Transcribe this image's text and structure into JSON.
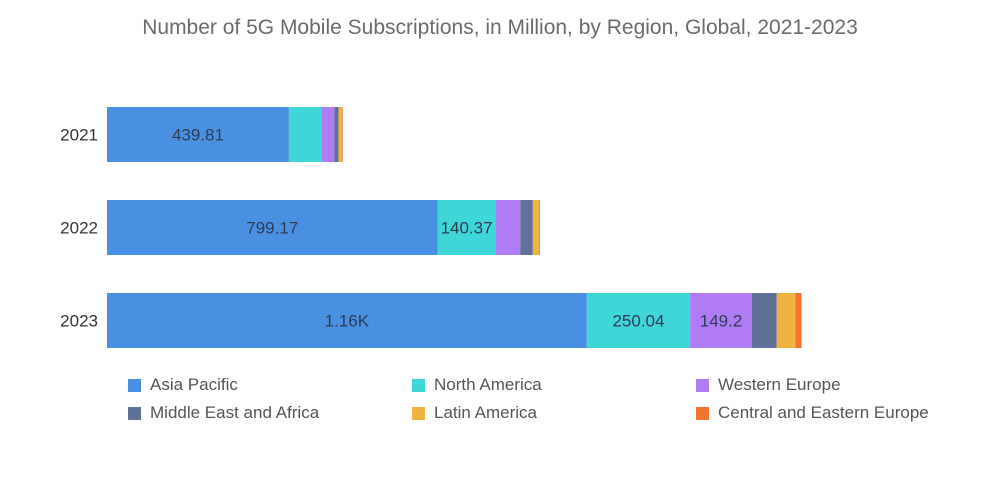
{
  "chart_data": {
    "type": "bar",
    "orientation": "horizontal",
    "stacked": true,
    "title": "Number of 5G Mobile Subscriptions, in Million, by Region, Global, 2021-2023",
    "xlabel": "",
    "ylabel": "",
    "xlim": [
      0,
      1800
    ],
    "grid": false,
    "legend_position": "bottom",
    "categories": [
      "2021",
      "2022",
      "2023"
    ],
    "series": [
      {
        "name": "Asia Pacific",
        "color": "#4a90e2",
        "values": [
          439.81,
          799.17,
          1160
        ],
        "labels": [
          "439.81",
          "799.17",
          "1.16K"
        ]
      },
      {
        "name": "North America",
        "color": "#3ed6d6",
        "values": [
          80,
          140.37,
          250.04
        ],
        "labels": [
          "",
          "140.37",
          "250.04"
        ]
      },
      {
        "name": "Western Europe",
        "color": "#b07cf5",
        "values": [
          30,
          60,
          149.2
        ],
        "labels": [
          "",
          "",
          "149.2"
        ]
      },
      {
        "name": "Middle East and Africa",
        "color": "#5e7397",
        "values": [
          10,
          30,
          60
        ],
        "labels": [
          "",
          "",
          ""
        ]
      },
      {
        "name": "Latin America",
        "color": "#f0b443",
        "values": [
          8,
          15,
          45
        ],
        "labels": [
          "",
          "",
          ""
        ]
      },
      {
        "name": "Central and Eastern Europe",
        "color": "#f2762f",
        "values": [
          2,
          2,
          15
        ],
        "labels": [
          "",
          "",
          ""
        ]
      }
    ]
  }
}
